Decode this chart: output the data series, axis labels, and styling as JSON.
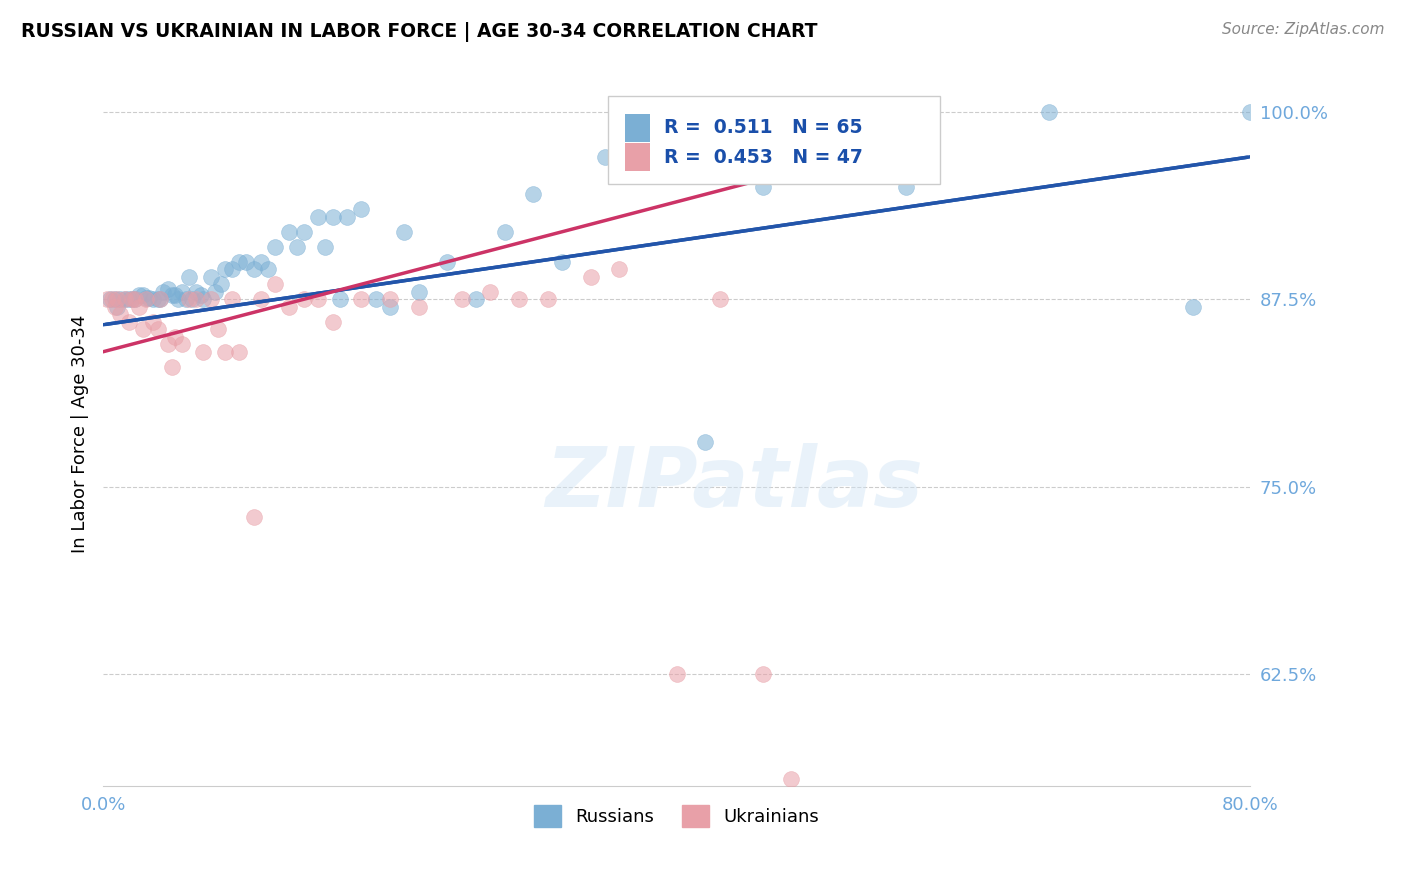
{
  "title": "RUSSIAN VS UKRAINIAN IN LABOR FORCE | AGE 30-34 CORRELATION CHART",
  "source": "Source: ZipAtlas.com",
  "ylabel": "In Labor Force | Age 30-34",
  "xlim": [
    0.0,
    0.8
  ],
  "ylim": [
    0.55,
    1.02
  ],
  "ytick_labels": [
    "62.5%",
    "75.0%",
    "87.5%",
    "100.0%"
  ],
  "ytick_values": [
    0.625,
    0.75,
    0.875,
    1.0
  ],
  "xtick_values": [
    0.0,
    0.1,
    0.2,
    0.3,
    0.4,
    0.5,
    0.6,
    0.7,
    0.8
  ],
  "blue_color": "#7bafd4",
  "pink_color": "#e8a0a8",
  "blue_line_color": "#2255aa",
  "pink_line_color": "#cc3366",
  "watermark": "ZIPatlas",
  "russians_x": [
    0.005,
    0.008,
    0.01,
    0.012,
    0.015,
    0.018,
    0.02,
    0.022,
    0.025,
    0.028,
    0.03,
    0.032,
    0.035,
    0.038,
    0.04,
    0.042,
    0.045,
    0.048,
    0.05,
    0.052,
    0.055,
    0.058,
    0.06,
    0.062,
    0.065,
    0.068,
    0.07,
    0.075,
    0.078,
    0.082,
    0.085,
    0.09,
    0.095,
    0.1,
    0.105,
    0.11,
    0.115,
    0.12,
    0.13,
    0.135,
    0.14,
    0.15,
    0.155,
    0.16,
    0.165,
    0.17,
    0.18,
    0.19,
    0.2,
    0.21,
    0.22,
    0.24,
    0.26,
    0.28,
    0.3,
    0.32,
    0.35,
    0.38,
    0.4,
    0.42,
    0.46,
    0.56,
    0.66,
    0.76,
    0.8
  ],
  "russians_y": [
    0.875,
    0.875,
    0.87,
    0.875,
    0.875,
    0.875,
    0.875,
    0.875,
    0.878,
    0.878,
    0.876,
    0.876,
    0.875,
    0.875,
    0.875,
    0.88,
    0.882,
    0.878,
    0.878,
    0.875,
    0.88,
    0.875,
    0.89,
    0.875,
    0.88,
    0.878,
    0.875,
    0.89,
    0.88,
    0.885,
    0.895,
    0.895,
    0.9,
    0.9,
    0.895,
    0.9,
    0.895,
    0.91,
    0.92,
    0.91,
    0.92,
    0.93,
    0.91,
    0.93,
    0.875,
    0.93,
    0.935,
    0.875,
    0.87,
    0.92,
    0.88,
    0.9,
    0.875,
    0.92,
    0.945,
    0.9,
    0.97,
    0.99,
    1.0,
    0.78,
    0.95,
    0.95,
    1.0,
    0.87,
    1.0
  ],
  "ukrainians_x": [
    0.003,
    0.006,
    0.008,
    0.01,
    0.012,
    0.015,
    0.018,
    0.02,
    0.022,
    0.025,
    0.028,
    0.03,
    0.035,
    0.038,
    0.04,
    0.045,
    0.048,
    0.05,
    0.055,
    0.06,
    0.065,
    0.07,
    0.075,
    0.08,
    0.085,
    0.09,
    0.095,
    0.105,
    0.11,
    0.12,
    0.13,
    0.14,
    0.15,
    0.16,
    0.18,
    0.2,
    0.22,
    0.25,
    0.27,
    0.29,
    0.31,
    0.34,
    0.36,
    0.4,
    0.43,
    0.46,
    0.48
  ],
  "ukrainians_y": [
    0.875,
    0.875,
    0.87,
    0.875,
    0.865,
    0.875,
    0.86,
    0.875,
    0.875,
    0.87,
    0.855,
    0.875,
    0.86,
    0.855,
    0.875,
    0.845,
    0.83,
    0.85,
    0.845,
    0.875,
    0.875,
    0.84,
    0.875,
    0.855,
    0.84,
    0.875,
    0.84,
    0.73,
    0.875,
    0.885,
    0.87,
    0.875,
    0.875,
    0.86,
    0.875,
    0.875,
    0.87,
    0.875,
    0.88,
    0.875,
    0.875,
    0.89,
    0.895,
    0.625,
    0.875,
    0.625,
    0.555
  ],
  "trend_blue_x0": 0.0,
  "trend_blue_x1": 0.8,
  "trend_blue_y0": 0.858,
  "trend_blue_y1": 0.97,
  "trend_pink_x0": 0.0,
  "trend_pink_x1": 0.48,
  "trend_pink_y0": 0.84,
  "trend_pink_y1": 0.96
}
